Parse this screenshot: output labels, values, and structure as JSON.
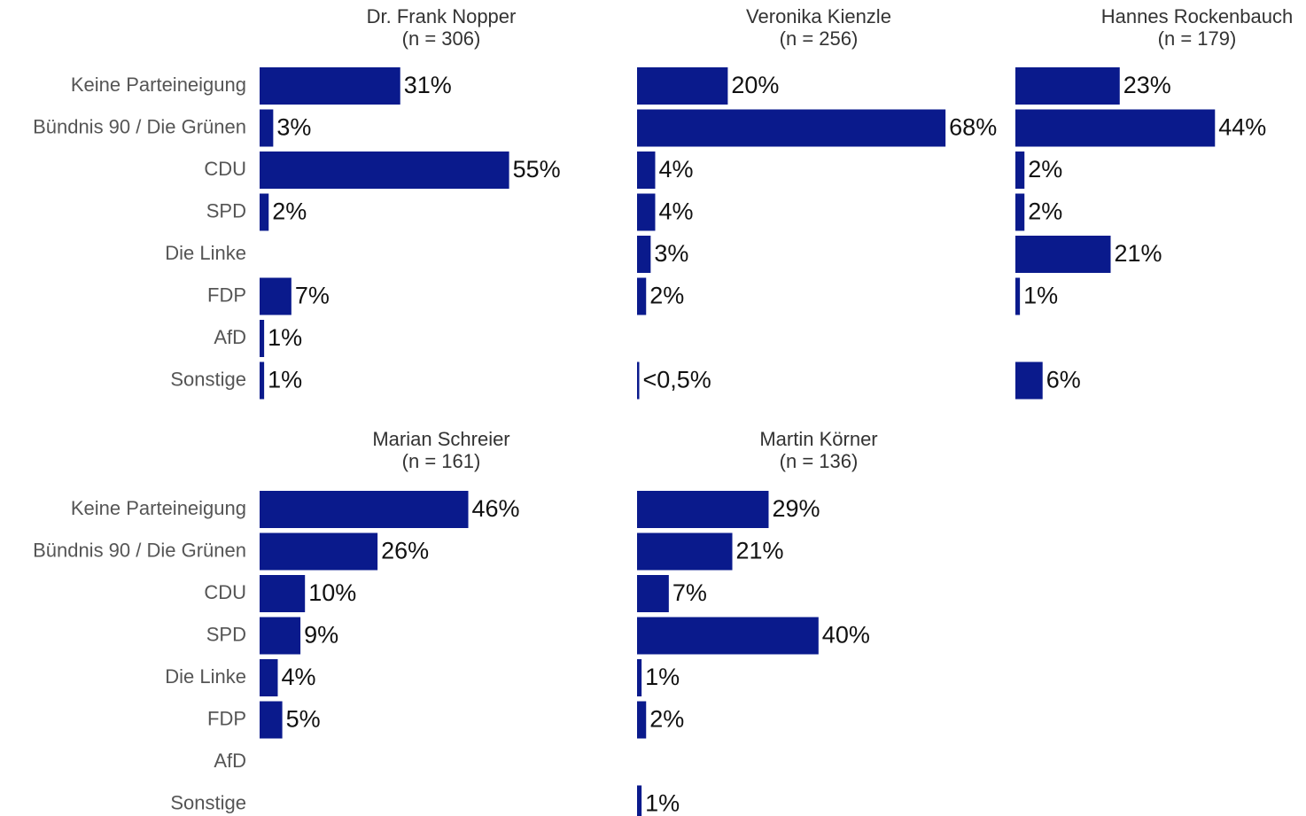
{
  "chart_data": [
    {
      "type": "bar",
      "title": "Dr. Frank Nopper",
      "subtitle": "(n = 306)",
      "color": "#0a1a8c",
      "categories": [
        "Keine Parteineigung",
        "Bündnis 90 / Die Grünen",
        "CDU",
        "SPD",
        "Die Linke",
        "FDP",
        "AfD",
        "Sonstige"
      ],
      "values": [
        31,
        3,
        55,
        2,
        null,
        7,
        1,
        1
      ],
      "value_labels": [
        "31%",
        "3%",
        "55%",
        "2%",
        null,
        "7%",
        "1%",
        "1%"
      ]
    },
    {
      "type": "bar",
      "title": "Veronika Kienzle",
      "subtitle": "(n = 256)",
      "color": "#0a1a8c",
      "values": [
        20,
        68,
        4,
        4,
        3,
        2,
        null,
        0.4
      ],
      "value_labels": [
        "20%",
        "68%",
        "4%",
        "4%",
        "3%",
        "2%",
        null,
        "<0,5%"
      ]
    },
    {
      "type": "bar",
      "title": "Hannes Rockenbauch",
      "subtitle": "(n = 179)",
      "color": "#0a1a8c",
      "values": [
        23,
        44,
        2,
        2,
        21,
        1,
        null,
        6
      ],
      "value_labels": [
        "23%",
        "44%",
        "2%",
        "2%",
        "21%",
        "1%",
        null,
        "6%"
      ]
    },
    {
      "type": "bar",
      "title": "Marian Schreier",
      "subtitle": "(n = 161)",
      "color": "#0a1a8c",
      "categories": [
        "Keine Parteineigung",
        "Bündnis 90 / Die Grünen",
        "CDU",
        "SPD",
        "Die Linke",
        "FDP",
        "AfD",
        "Sonstige"
      ],
      "values": [
        46,
        26,
        10,
        9,
        4,
        5,
        null,
        null
      ],
      "value_labels": [
        "46%",
        "26%",
        "10%",
        "9%",
        "4%",
        "5%",
        null,
        null
      ]
    },
    {
      "type": "bar",
      "title": "Martin Körner",
      "subtitle": "(n = 136)",
      "color": "#0a1a8c",
      "values": [
        29,
        21,
        7,
        40,
        1,
        2,
        null,
        1
      ],
      "value_labels": [
        "29%",
        "21%",
        "7%",
        "40%",
        "1%",
        "2%",
        null,
        "1%"
      ]
    }
  ]
}
